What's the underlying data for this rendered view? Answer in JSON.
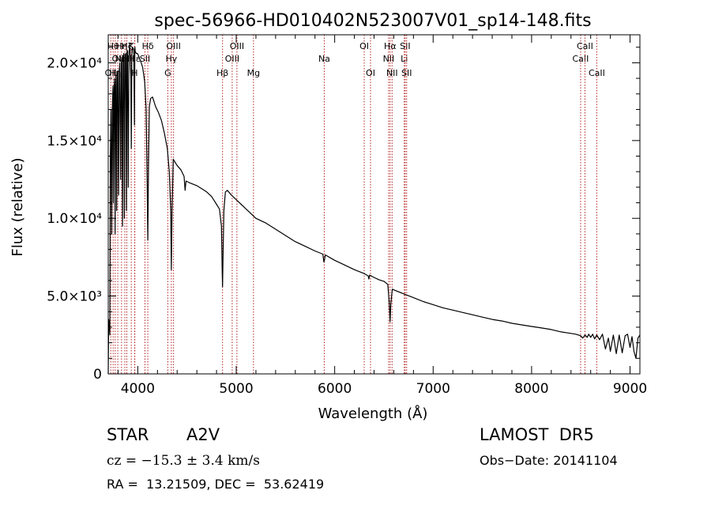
{
  "chart_data": {
    "type": "line",
    "title": "spec-56966-HD010402N523007V01_sp14-148.fits",
    "xlabel": "Wavelength (Å)",
    "ylabel": "Flux (relative)",
    "xlim": [
      3700,
      9100
    ],
    "ylim": [
      0,
      21800
    ],
    "x_ticks": [
      {
        "value": 4000,
        "label": "4000"
      },
      {
        "value": 5000,
        "label": "5000"
      },
      {
        "value": 6000,
        "label": "6000"
      },
      {
        "value": 7000,
        "label": "7000"
      },
      {
        "value": 8000,
        "label": "8000"
      },
      {
        "value": 9000,
        "label": "9000"
      }
    ],
    "y_ticks": [
      {
        "value": 0,
        "label": "0"
      },
      {
        "value": 5000,
        "label": "5.0×10³"
      },
      {
        "value": 10000,
        "label": "1.0×10⁴"
      },
      {
        "value": 15000,
        "label": "1.5×10⁴"
      },
      {
        "value": 20000,
        "label": "2.0×10⁴"
      }
    ],
    "line_color": "#000000",
    "marker_color": "#b22222",
    "series": [
      {
        "x": [
          3700,
          3705,
          3712,
          3716,
          3722,
          3728,
          3735,
          3742,
          3748,
          3752,
          3758,
          3764,
          3770,
          3775,
          3780,
          3786,
          3792,
          3798,
          3805,
          3812,
          3818,
          3826,
          3833,
          3838,
          3845,
          3852,
          3858,
          3864,
          3871,
          3878,
          3885,
          3890,
          3895,
          3903,
          3910,
          3920,
          3930,
          3934,
          3940,
          3948,
          3960,
          3966,
          3970,
          3975,
          3985,
          3995,
          4005,
          4015,
          4030,
          4050,
          4070,
          4085,
          4095,
          4102,
          4109,
          4118,
          4130,
          4150,
          4180,
          4210,
          4240,
          4270,
          4300,
          4320,
          4335,
          4341,
          4348,
          4360,
          4380,
          4400,
          4440,
          4470,
          4481,
          4490,
          4520,
          4560,
          4600,
          4650,
          4700,
          4750,
          4800,
          4830,
          4850,
          4858,
          4861,
          4866,
          4875,
          4890,
          4910,
          4950,
          5000,
          5050,
          5100,
          5150,
          5200,
          5300,
          5400,
          5500,
          5600,
          5700,
          5800,
          5880,
          5890,
          5896,
          5905,
          6000,
          6100,
          6200,
          6300,
          6340,
          6347,
          6355,
          6400,
          6450,
          6500,
          6540,
          6555,
          6563,
          6570,
          6585,
          6600,
          6700,
          6800,
          6900,
          7000,
          7100,
          7200,
          7300,
          7400,
          7500,
          7600,
          7700,
          7800,
          7900,
          8000,
          8100,
          8200,
          8300,
          8400,
          8450,
          8498,
          8520,
          8542,
          8565,
          8580,
          8600,
          8620,
          8640,
          8662,
          8690,
          8720,
          8750,
          8780,
          8800,
          8830,
          8860,
          8890,
          8920,
          8950,
          8975,
          9000,
          9020,
          9040,
          9060,
          9080,
          9100
        ],
        "y": [
          0,
          3500,
          3000,
          2500,
          14000,
          17000,
          9000,
          17000,
          18500,
          11000,
          18000,
          19000,
          9000,
          18500,
          19200,
          10500,
          19000,
          19500,
          11500,
          19500,
          20000,
          12500,
          20000,
          20300,
          9500,
          20400,
          20600,
          10000,
          20500,
          20600,
          10500,
          20700,
          20800,
          12000,
          20700,
          21000,
          19000,
          14500,
          20500,
          21000,
          20800,
          16000,
          21000,
          20700,
          20600,
          20600,
          20500,
          20300,
          20100,
          19700,
          18800,
          17000,
          12500,
          8600,
          13500,
          17200,
          17700,
          17800,
          17200,
          16800,
          16300,
          15500,
          14500,
          13000,
          10500,
          6700,
          10500,
          13800,
          13600,
          13400,
          13100,
          12700,
          11800,
          12400,
          12300,
          12200,
          12100,
          11900,
          11700,
          11400,
          10900,
          10600,
          9500,
          6500,
          5600,
          7500,
          10500,
          11700,
          11800,
          11500,
          11200,
          10900,
          10600,
          10300,
          10000,
          9700,
          9300,
          8900,
          8500,
          8200,
          7900,
          7700,
          7200,
          7300,
          7650,
          7300,
          7000,
          6700,
          6450,
          6300,
          6100,
          6350,
          6200,
          6050,
          5950,
          5750,
          4500,
          3350,
          4500,
          5450,
          5400,
          5150,
          4900,
          4650,
          4450,
          4250,
          4100,
          3950,
          3800,
          3650,
          3500,
          3400,
          3250,
          3150,
          3050,
          2950,
          2850,
          2700,
          2600,
          2550,
          2450,
          2300,
          2500,
          2350,
          2550,
          2350,
          2550,
          2250,
          2500,
          2200,
          2550,
          1600,
          2300,
          1450,
          2500,
          1300,
          2500,
          1350,
          2450,
          2550,
          1700,
          2400,
          1450,
          1000,
          2300,
          2500
        ]
      }
    ],
    "line_markers": [
      {
        "x": 3726,
        "label": "OII",
        "row": 3
      },
      {
        "x": 3750,
        "label": "Hθ",
        "row": 1
      },
      {
        "x": 3771,
        "label": "Hη",
        "row": 3
      },
      {
        "x": 3797,
        "label": "OII",
        "row": 2
      },
      {
        "x": 3835,
        "label": "Hη",
        "row": 1
      },
      {
        "x": 3869,
        "label": "NeIII",
        "row": 2
      },
      {
        "x": 3889,
        "label": "Hζ",
        "row": 1
      },
      {
        "x": 3934,
        "label": "K",
        "row": 1
      },
      {
        "x": 3968,
        "label": "H",
        "row": 3
      },
      {
        "x": 3970,
        "label": "Hε",
        "row": 2
      },
      {
        "x": 4073,
        "label": "SII",
        "row": 2
      },
      {
        "x": 4102,
        "label": "Hδ",
        "row": 1
      },
      {
        "x": 4305,
        "label": "G",
        "row": 3
      },
      {
        "x": 4341,
        "label": "Hγ",
        "row": 2
      },
      {
        "x": 4363,
        "label": "OIII",
        "row": 1
      },
      {
        "x": 4861,
        "label": "Hβ",
        "row": 3
      },
      {
        "x": 4959,
        "label": "OIII",
        "row": 2
      },
      {
        "x": 5007,
        "label": "OIII",
        "row": 1
      },
      {
        "x": 5175,
        "label": "Mg",
        "row": 3
      },
      {
        "x": 5894,
        "label": "Na",
        "row": 2
      },
      {
        "x": 6300,
        "label": "OI",
        "row": 1
      },
      {
        "x": 6364,
        "label": "OI",
        "row": 3
      },
      {
        "x": 6548,
        "label": "NII",
        "row": 2
      },
      {
        "x": 6563,
        "label": "Hα",
        "row": 1
      },
      {
        "x": 6583,
        "label": "NII",
        "row": 3
      },
      {
        "x": 6707,
        "label": "Li",
        "row": 2
      },
      {
        "x": 6716,
        "label": "SII",
        "row": 1
      },
      {
        "x": 6731,
        "label": "SII",
        "row": 3
      },
      {
        "x": 8498,
        "label": "CaII",
        "row": 2
      },
      {
        "x": 8542,
        "label": "CaII",
        "row": 1
      },
      {
        "x": 8662,
        "label": "CaII",
        "row": 3
      }
    ]
  },
  "info": {
    "object_class": "STAR",
    "subclass": "A2V",
    "survey": "LAMOST  DR5",
    "redshift": "cz = −15.3 ± 3.4 km/s",
    "obs_date": "Obs−Date: 20141104",
    "coords": "RA =  13.21509, DEC =  53.62419"
  }
}
